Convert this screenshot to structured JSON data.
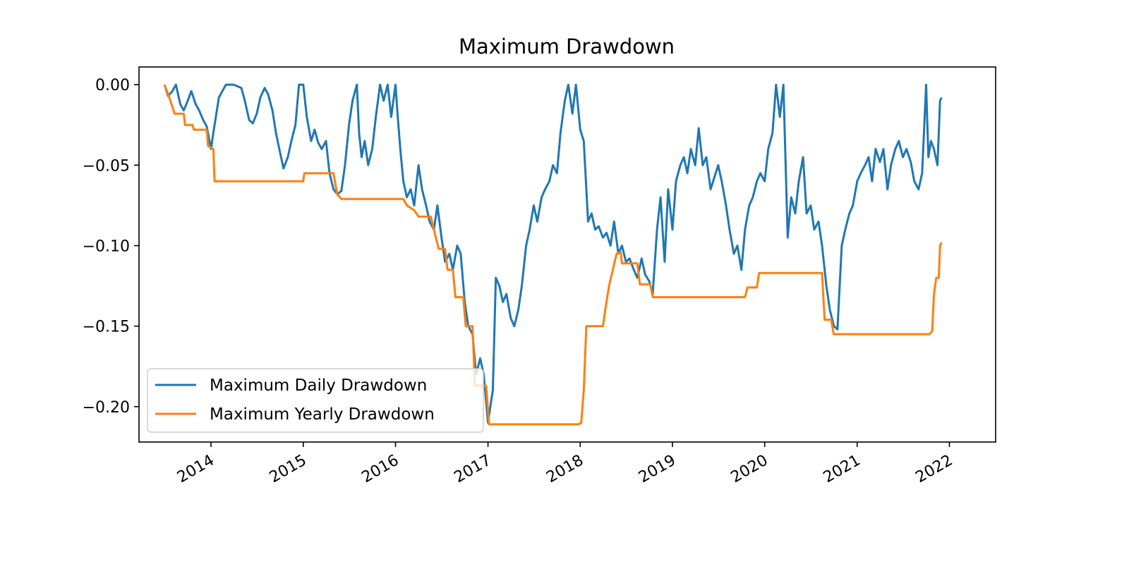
{
  "chart_data": {
    "type": "line",
    "title": "Maximum Drawdown",
    "xlabel": "",
    "ylabel": "",
    "x_ticks": [
      "2014",
      "2015",
      "2016",
      "2017",
      "2018",
      "2019",
      "2020",
      "2021",
      "2022"
    ],
    "y_ticks": [
      "0.00",
      "−0.05",
      "−0.10",
      "−0.15",
      "−0.20"
    ],
    "ylim": [
      -0.222,
      0.011
    ],
    "xlim": [
      "2013-03-22",
      "2022-07-03"
    ],
    "grid": false,
    "legend_position": "lower-left",
    "series": [
      {
        "name": "Maximum Daily Drawdown",
        "color": "#1f77b4",
        "points": [
          [
            "2013-07-01",
            0.0
          ],
          [
            "2013-07-15",
            -0.007
          ],
          [
            "2013-08-01",
            -0.004
          ],
          [
            "2013-08-15",
            0.0
          ],
          [
            "2013-09-01",
            -0.012
          ],
          [
            "2013-09-15",
            -0.016
          ],
          [
            "2013-10-01",
            -0.01
          ],
          [
            "2013-10-15",
            -0.004
          ],
          [
            "2013-11-01",
            -0.012
          ],
          [
            "2013-11-15",
            -0.016
          ],
          [
            "2013-12-01",
            -0.022
          ],
          [
            "2013-12-15",
            -0.026
          ],
          [
            "2014-01-01",
            -0.04
          ],
          [
            "2014-01-10",
            -0.03
          ],
          [
            "2014-01-20",
            -0.02
          ],
          [
            "2014-02-01",
            -0.008
          ],
          [
            "2014-02-15",
            -0.004
          ],
          [
            "2014-03-01",
            0.0
          ],
          [
            "2014-04-01",
            0.0
          ],
          [
            "2014-05-01",
            -0.002
          ],
          [
            "2014-05-15",
            -0.01
          ],
          [
            "2014-06-01",
            -0.022
          ],
          [
            "2014-06-15",
            -0.024
          ],
          [
            "2014-07-01",
            -0.018
          ],
          [
            "2014-07-15",
            -0.008
          ],
          [
            "2014-08-01",
            -0.002
          ],
          [
            "2014-08-15",
            -0.006
          ],
          [
            "2014-09-01",
            -0.016
          ],
          [
            "2014-09-15",
            -0.03
          ],
          [
            "2014-10-01",
            -0.042
          ],
          [
            "2014-10-15",
            -0.052
          ],
          [
            "2014-11-01",
            -0.045
          ],
          [
            "2014-11-15",
            -0.035
          ],
          [
            "2014-12-01",
            -0.025
          ],
          [
            "2014-12-15",
            0.0
          ],
          [
            "2015-01-01",
            0.0
          ],
          [
            "2015-01-15",
            -0.02
          ],
          [
            "2015-02-01",
            -0.035
          ],
          [
            "2015-02-15",
            -0.028
          ],
          [
            "2015-03-01",
            -0.036
          ],
          [
            "2015-03-15",
            -0.04
          ],
          [
            "2015-04-01",
            -0.035
          ],
          [
            "2015-04-15",
            -0.055
          ],
          [
            "2015-05-01",
            -0.065
          ],
          [
            "2015-05-15",
            -0.068
          ],
          [
            "2015-06-01",
            -0.066
          ],
          [
            "2015-06-15",
            -0.05
          ],
          [
            "2015-07-01",
            -0.025
          ],
          [
            "2015-07-15",
            -0.01
          ],
          [
            "2015-08-01",
            0.0
          ],
          [
            "2015-08-10",
            -0.03
          ],
          [
            "2015-08-20",
            -0.045
          ],
          [
            "2015-09-01",
            -0.035
          ],
          [
            "2015-09-15",
            -0.05
          ],
          [
            "2015-10-01",
            -0.04
          ],
          [
            "2015-10-15",
            -0.02
          ],
          [
            "2015-11-01",
            0.0
          ],
          [
            "2015-11-15",
            -0.01
          ],
          [
            "2015-12-01",
            0.0
          ],
          [
            "2015-12-15",
            -0.02
          ],
          [
            "2016-01-01",
            0.0
          ],
          [
            "2016-01-10",
            -0.02
          ],
          [
            "2016-01-20",
            -0.04
          ],
          [
            "2016-02-01",
            -0.06
          ],
          [
            "2016-02-15",
            -0.07
          ],
          [
            "2016-03-01",
            -0.065
          ],
          [
            "2016-03-15",
            -0.075
          ],
          [
            "2016-04-01",
            -0.05
          ],
          [
            "2016-04-15",
            -0.065
          ],
          [
            "2016-05-01",
            -0.075
          ],
          [
            "2016-05-15",
            -0.085
          ],
          [
            "2016-06-01",
            -0.09
          ],
          [
            "2016-06-15",
            -0.075
          ],
          [
            "2016-07-01",
            -0.095
          ],
          [
            "2016-07-15",
            -0.11
          ],
          [
            "2016-08-01",
            -0.105
          ],
          [
            "2016-08-15",
            -0.115
          ],
          [
            "2016-09-01",
            -0.1
          ],
          [
            "2016-09-15",
            -0.105
          ],
          [
            "2016-10-01",
            -0.135
          ],
          [
            "2016-10-15",
            -0.15
          ],
          [
            "2016-11-01",
            -0.155
          ],
          [
            "2016-11-15",
            -0.18
          ],
          [
            "2016-12-01",
            -0.17
          ],
          [
            "2016-12-15",
            -0.18
          ],
          [
            "2017-01-01",
            -0.21
          ],
          [
            "2017-01-10",
            -0.2
          ],
          [
            "2017-01-20",
            -0.19
          ],
          [
            "2017-02-01",
            -0.12
          ],
          [
            "2017-02-15",
            -0.125
          ],
          [
            "2017-03-01",
            -0.135
          ],
          [
            "2017-03-15",
            -0.13
          ],
          [
            "2017-04-01",
            -0.145
          ],
          [
            "2017-04-15",
            -0.15
          ],
          [
            "2017-05-01",
            -0.14
          ],
          [
            "2017-05-15",
            -0.125
          ],
          [
            "2017-06-01",
            -0.1
          ],
          [
            "2017-06-15",
            -0.09
          ],
          [
            "2017-07-01",
            -0.075
          ],
          [
            "2017-07-15",
            -0.085
          ],
          [
            "2017-08-01",
            -0.07
          ],
          [
            "2017-08-15",
            -0.065
          ],
          [
            "2017-09-01",
            -0.06
          ],
          [
            "2017-09-15",
            -0.05
          ],
          [
            "2017-10-01",
            -0.055
          ],
          [
            "2017-10-15",
            -0.03
          ],
          [
            "2017-11-01",
            -0.01
          ],
          [
            "2017-11-15",
            0.0
          ],
          [
            "2017-12-01",
            -0.018
          ],
          [
            "2017-12-15",
            0.0
          ],
          [
            "2018-01-01",
            -0.028
          ],
          [
            "2018-01-15",
            -0.035
          ],
          [
            "2018-02-01",
            -0.085
          ],
          [
            "2018-02-15",
            -0.08
          ],
          [
            "2018-03-01",
            -0.09
          ],
          [
            "2018-03-15",
            -0.088
          ],
          [
            "2018-04-01",
            -0.095
          ],
          [
            "2018-04-15",
            -0.092
          ],
          [
            "2018-05-01",
            -0.1
          ],
          [
            "2018-05-15",
            -0.085
          ],
          [
            "2018-06-01",
            -0.105
          ],
          [
            "2018-06-15",
            -0.1
          ],
          [
            "2018-07-01",
            -0.11
          ],
          [
            "2018-07-15",
            -0.108
          ],
          [
            "2018-08-01",
            -0.115
          ],
          [
            "2018-08-15",
            -0.12
          ],
          [
            "2018-09-01",
            -0.108
          ],
          [
            "2018-09-15",
            -0.118
          ],
          [
            "2018-10-01",
            -0.122
          ],
          [
            "2018-10-15",
            -0.13
          ],
          [
            "2018-11-01",
            -0.09
          ],
          [
            "2018-11-15",
            -0.07
          ],
          [
            "2018-12-01",
            -0.11
          ],
          [
            "2018-12-15",
            -0.065
          ],
          [
            "2019-01-01",
            -0.09
          ],
          [
            "2019-01-15",
            -0.06
          ],
          [
            "2019-02-01",
            -0.05
          ],
          [
            "2019-02-15",
            -0.045
          ],
          [
            "2019-03-01",
            -0.055
          ],
          [
            "2019-03-15",
            -0.04
          ],
          [
            "2019-04-01",
            -0.05
          ],
          [
            "2019-04-15",
            -0.027
          ],
          [
            "2019-05-01",
            -0.05
          ],
          [
            "2019-05-15",
            -0.045
          ],
          [
            "2019-06-01",
            -0.065
          ],
          [
            "2019-06-15",
            -0.058
          ],
          [
            "2019-07-01",
            -0.05
          ],
          [
            "2019-07-15",
            -0.06
          ],
          [
            "2019-08-01",
            -0.075
          ],
          [
            "2019-08-15",
            -0.09
          ],
          [
            "2019-09-01",
            -0.105
          ],
          [
            "2019-09-15",
            -0.1
          ],
          [
            "2019-10-01",
            -0.115
          ],
          [
            "2019-10-15",
            -0.09
          ],
          [
            "2019-11-01",
            -0.075
          ],
          [
            "2019-11-15",
            -0.07
          ],
          [
            "2019-12-01",
            -0.06
          ],
          [
            "2019-12-15",
            -0.055
          ],
          [
            "2020-01-01",
            -0.06
          ],
          [
            "2020-01-15",
            -0.04
          ],
          [
            "2020-02-01",
            -0.03
          ],
          [
            "2020-02-15",
            0.0
          ],
          [
            "2020-03-01",
            -0.02
          ],
          [
            "2020-03-15",
            0.0
          ],
          [
            "2020-04-01",
            -0.095
          ],
          [
            "2020-04-15",
            -0.07
          ],
          [
            "2020-05-01",
            -0.08
          ],
          [
            "2020-05-15",
            -0.06
          ],
          [
            "2020-06-01",
            -0.045
          ],
          [
            "2020-06-15",
            -0.08
          ],
          [
            "2020-07-01",
            -0.075
          ],
          [
            "2020-07-15",
            -0.09
          ],
          [
            "2020-08-01",
            -0.085
          ],
          [
            "2020-08-15",
            -0.1
          ],
          [
            "2020-09-01",
            -0.125
          ],
          [
            "2020-09-15",
            -0.14
          ],
          [
            "2020-10-01",
            -0.15
          ],
          [
            "2020-10-15",
            -0.152
          ],
          [
            "2020-11-01",
            -0.1
          ],
          [
            "2020-11-15",
            -0.09
          ],
          [
            "2020-12-01",
            -0.08
          ],
          [
            "2020-12-15",
            -0.075
          ],
          [
            "2021-01-01",
            -0.06
          ],
          [
            "2021-01-15",
            -0.055
          ],
          [
            "2021-02-01",
            -0.05
          ],
          [
            "2021-02-15",
            -0.045
          ],
          [
            "2021-03-01",
            -0.06
          ],
          [
            "2021-03-15",
            -0.04
          ],
          [
            "2021-04-01",
            -0.048
          ],
          [
            "2021-04-15",
            -0.04
          ],
          [
            "2021-05-01",
            -0.065
          ],
          [
            "2021-05-15",
            -0.05
          ],
          [
            "2021-06-01",
            -0.04
          ],
          [
            "2021-06-15",
            -0.035
          ],
          [
            "2021-07-01",
            -0.045
          ],
          [
            "2021-07-15",
            -0.04
          ],
          [
            "2021-08-01",
            -0.048
          ],
          [
            "2021-08-15",
            -0.06
          ],
          [
            "2021-09-01",
            -0.065
          ],
          [
            "2021-09-15",
            -0.055
          ],
          [
            "2021-10-01",
            0.0
          ],
          [
            "2021-10-10",
            -0.045
          ],
          [
            "2021-10-20",
            -0.035
          ],
          [
            "2021-11-01",
            -0.04
          ],
          [
            "2021-11-15",
            -0.05
          ],
          [
            "2021-11-25",
            -0.01
          ],
          [
            "2021-12-01",
            -0.008
          ]
        ]
      },
      {
        "name": "Maximum Yearly Drawdown",
        "color": "#ff7f0e",
        "points": [
          [
            "2013-07-01",
            0.0
          ],
          [
            "2013-07-20",
            -0.008
          ],
          [
            "2013-08-10",
            -0.018
          ],
          [
            "2013-09-15",
            -0.018
          ],
          [
            "2013-09-20",
            -0.025
          ],
          [
            "2013-10-20",
            -0.025
          ],
          [
            "2013-10-25",
            -0.028
          ],
          [
            "2013-12-15",
            -0.028
          ],
          [
            "2013-12-20",
            -0.038
          ],
          [
            "2014-01-10",
            -0.04
          ],
          [
            "2014-01-15",
            -0.06
          ],
          [
            "2015-01-01",
            -0.06
          ],
          [
            "2015-01-05",
            -0.055
          ],
          [
            "2015-05-01",
            -0.055
          ],
          [
            "2015-05-15",
            -0.068
          ],
          [
            "2015-06-01",
            -0.071
          ],
          [
            "2016-02-01",
            -0.071
          ],
          [
            "2016-02-15",
            -0.075
          ],
          [
            "2016-03-15",
            -0.078
          ],
          [
            "2016-04-01",
            -0.082
          ],
          [
            "2016-05-20",
            -0.082
          ],
          [
            "2016-06-01",
            -0.09
          ],
          [
            "2016-06-20",
            -0.102
          ],
          [
            "2016-07-15",
            -0.102
          ],
          [
            "2016-07-25",
            -0.115
          ],
          [
            "2016-08-15",
            -0.115
          ],
          [
            "2016-08-25",
            -0.132
          ],
          [
            "2016-09-25",
            -0.132
          ],
          [
            "2016-10-05",
            -0.15
          ],
          [
            "2016-11-01",
            -0.15
          ],
          [
            "2016-11-10",
            -0.187
          ],
          [
            "2016-12-25",
            -0.187
          ],
          [
            "2017-01-05",
            -0.211
          ],
          [
            "2017-12-25",
            -0.211
          ],
          [
            "2018-01-05",
            -0.21
          ],
          [
            "2018-01-15",
            -0.19
          ],
          [
            "2018-01-25",
            -0.15
          ],
          [
            "2018-04-01",
            -0.15
          ],
          [
            "2018-04-10",
            -0.14
          ],
          [
            "2018-04-25",
            -0.125
          ],
          [
            "2018-05-10",
            -0.115
          ],
          [
            "2018-05-25",
            -0.105
          ],
          [
            "2018-06-10",
            -0.104
          ],
          [
            "2018-06-15",
            -0.111
          ],
          [
            "2018-08-15",
            -0.111
          ],
          [
            "2018-08-25",
            -0.124
          ],
          [
            "2018-10-05",
            -0.124
          ],
          [
            "2018-10-15",
            -0.132
          ],
          [
            "2019-10-15",
            -0.132
          ],
          [
            "2019-10-25",
            -0.126
          ],
          [
            "2019-12-01",
            -0.126
          ],
          [
            "2019-12-10",
            -0.117
          ],
          [
            "2020-08-15",
            -0.117
          ],
          [
            "2020-08-25",
            -0.146
          ],
          [
            "2020-09-20",
            -0.146
          ],
          [
            "2020-09-30",
            -0.155
          ],
          [
            "2021-10-15",
            -0.155
          ],
          [
            "2021-10-25",
            -0.153
          ],
          [
            "2021-11-01",
            -0.13
          ],
          [
            "2021-11-10",
            -0.12
          ],
          [
            "2021-11-20",
            -0.12
          ],
          [
            "2021-11-25",
            -0.1
          ],
          [
            "2021-12-01",
            -0.098
          ]
        ]
      }
    ]
  }
}
